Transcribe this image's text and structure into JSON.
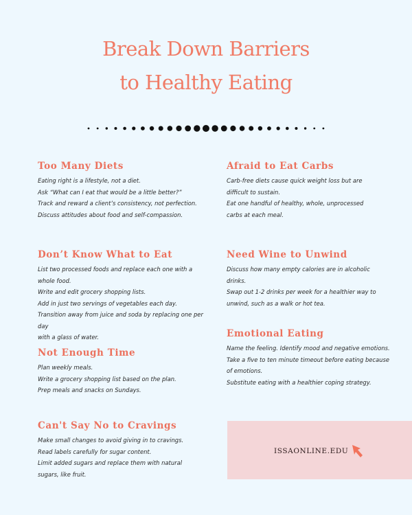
{
  "title": {
    "line1": "Break Down Barriers",
    "line2": "to Healthy Eating"
  },
  "accent_color": "#ec715d",
  "sections": [
    {
      "heading": "Too Many Diets",
      "lines": [
        "Eating right is a lifestyle, not a diet.",
        "Ask “What can I eat that would be a little better?”",
        "Track and reward a client’s consistency, not perfection.",
        "Discuss attitudes about food and self-compassion."
      ]
    },
    {
      "heading": "Afraid to Eat Carbs",
      "lines": [
        "Carb-free diets cause quick weight loss but are",
        "difficult to sustain.",
        "Eat one handful of healthy, whole, unprocessed",
        "carbs at each meal."
      ]
    },
    {
      "heading": "Don’t Know What to Eat",
      "lines": [
        "List two processed foods and replace each one with a whole food.",
        "Write and edit grocery shopping lists.",
        "Add in just two servings of vegetables each day.",
        "Transition away from juice and soda by replacing one per day",
        "with a glass of water."
      ]
    },
    {
      "heading": "Need Wine to Unwind",
      "lines": [
        "Discuss how many empty calories are in alcoholic drinks.",
        "Swap out 1-2 drinks per week for a healthier way to",
        "unwind, such as a walk or hot tea."
      ]
    },
    {
      "heading": "Emotional Eating",
      "lines": [
        "Name the feeling. Identify mood and negative emotions.",
        "Take a five to ten minute timeout before eating because",
        "of emotions.",
        "Substitute eating with a healthier coping strategy."
      ]
    },
    {
      "heading": "Not Enough Time",
      "lines": [
        "Plan weekly meals.",
        "Write a grocery shopping list based on the plan.",
        "Prep meals and snacks on Sundays."
      ]
    },
    {
      "heading": "Can't Say No to Cravings",
      "lines": [
        "Make small changes to avoid giving in to cravings.",
        "Read labels carefully for sugar content.",
        "Limit added sugars and replace them with natural",
        "sugars, like fruit."
      ]
    }
  ],
  "cta": {
    "label": "ISSAONLINE.EDU",
    "icon": "cursor-arrow-icon"
  }
}
